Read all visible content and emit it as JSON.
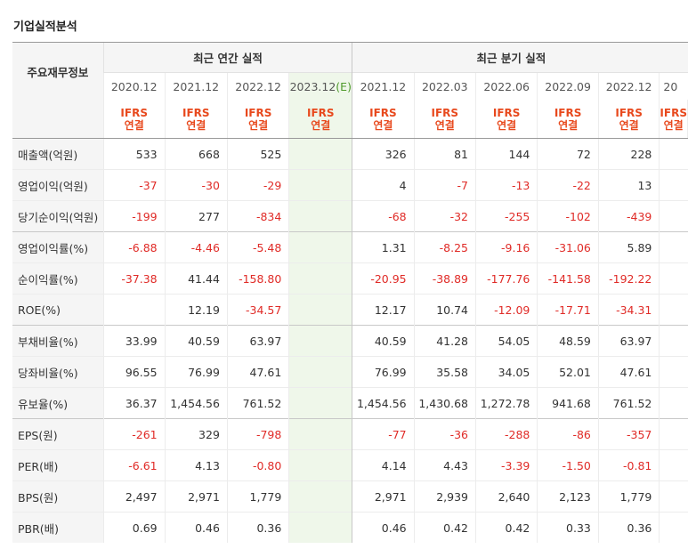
{
  "page_title": "기업실적분석",
  "table": {
    "row_header_label": "주요재무정보",
    "annual_group": "최근 연간 실적",
    "quarter_group": "최근 분기 실적",
    "annual_periods": [
      "2020.12",
      "2021.12",
      "2022.12",
      "2023.12"
    ],
    "estimate_mark": "(E)",
    "quarter_periods": [
      "2021.12",
      "2022.03",
      "2022.06",
      "2022.09",
      "2022.12",
      "20"
    ],
    "standard_line1": "IFRS",
    "standard_line2": "연결",
    "rows": [
      {
        "label": "매출액(억원)",
        "annual": [
          "533",
          "668",
          "525",
          ""
        ],
        "quarter": [
          "326",
          "81",
          "144",
          "72",
          "228"
        ]
      },
      {
        "label": "영업이익(억원)",
        "annual": [
          "-37",
          "-30",
          "-29",
          ""
        ],
        "quarter": [
          "4",
          "-7",
          "-13",
          "-22",
          "13"
        ]
      },
      {
        "label": "당기순이익(억원)",
        "annual": [
          "-199",
          "277",
          "-834",
          ""
        ],
        "quarter": [
          "-68",
          "-32",
          "-255",
          "-102",
          "-439"
        ]
      },
      {
        "label": "영업이익률(%)",
        "annual": [
          "-6.88",
          "-4.46",
          "-5.48",
          ""
        ],
        "quarter": [
          "1.31",
          "-8.25",
          "-9.16",
          "-31.06",
          "5.89"
        ]
      },
      {
        "label": "순이익률(%)",
        "annual": [
          "-37.38",
          "41.44",
          "-158.80",
          ""
        ],
        "quarter": [
          "-20.95",
          "-38.89",
          "-177.76",
          "-141.58",
          "-192.22"
        ]
      },
      {
        "label": "ROE(%)",
        "annual": [
          "",
          "12.19",
          "-34.57",
          ""
        ],
        "quarter": [
          "12.17",
          "10.74",
          "-12.09",
          "-17.71",
          "-34.31"
        ]
      },
      {
        "label": "부채비율(%)",
        "annual": [
          "33.99",
          "40.59",
          "63.97",
          ""
        ],
        "quarter": [
          "40.59",
          "41.28",
          "54.05",
          "48.59",
          "63.97"
        ]
      },
      {
        "label": "당좌비율(%)",
        "annual": [
          "96.55",
          "76.99",
          "47.61",
          ""
        ],
        "quarter": [
          "76.99",
          "35.58",
          "34.05",
          "52.01",
          "47.61"
        ]
      },
      {
        "label": "유보율(%)",
        "annual": [
          "36.37",
          "1,454.56",
          "761.52",
          ""
        ],
        "quarter": [
          "1,454.56",
          "1,430.68",
          "1,272.78",
          "941.68",
          "761.52"
        ]
      },
      {
        "label": "EPS(원)",
        "annual": [
          "-261",
          "329",
          "-798",
          ""
        ],
        "quarter": [
          "-77",
          "-36",
          "-288",
          "-86",
          "-357"
        ]
      },
      {
        "label": "PER(배)",
        "annual": [
          "-6.61",
          "4.13",
          "-0.80",
          ""
        ],
        "quarter": [
          "4.14",
          "4.43",
          "-3.39",
          "-1.50",
          "-0.81"
        ]
      },
      {
        "label": "BPS(원)",
        "annual": [
          "2,497",
          "2,971",
          "1,779",
          ""
        ],
        "quarter": [
          "2,971",
          "2,939",
          "2,640",
          "2,123",
          "1,779"
        ]
      },
      {
        "label": "PBR(배)",
        "annual": [
          "0.69",
          "0.46",
          "0.36",
          ""
        ],
        "quarter": [
          "0.46",
          "0.42",
          "0.42",
          "0.33",
          "0.36"
        ]
      }
    ],
    "group_break_before": [
      3,
      6,
      9
    ],
    "colors": {
      "negative": "#e02b27",
      "standard": "#e8491d",
      "estimate_bg": "#eff7ea",
      "header_bg": "#f5f5f5"
    }
  }
}
